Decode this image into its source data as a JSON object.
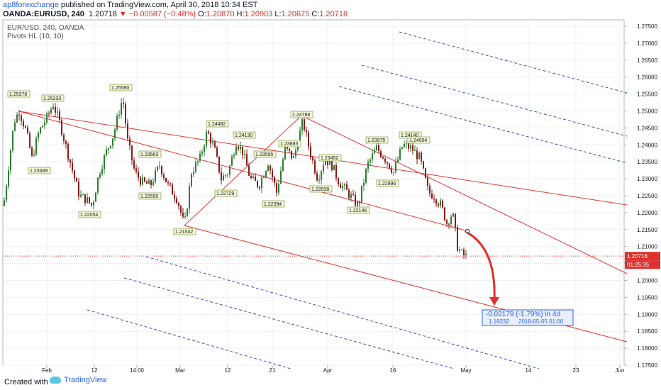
{
  "header": {
    "author": "ap8forexchange",
    "published": "published on TradingView.com, April 30, 2018 10:34 EST",
    "symbol": "OANDA:EURUSD, 240",
    "last": "1.20718",
    "change": "▼ −0.00587 (−0.48%)",
    "o_label": "O:",
    "o": "1.20870",
    "h_label": "H:",
    "h": "1.20903",
    "l_label": "L:",
    "l": "1.20675",
    "c_label": "C:",
    "c": "1.20718"
  },
  "legend": {
    "line1": "EUR/USD, 240, OANDA",
    "line2": "Pivots HL (10, 10)"
  },
  "chart_data": {
    "type": "candlestick",
    "y_ticks": [
      "1.27500",
      "1.27000",
      "1.26500",
      "1.26000",
      "1.25500",
      "1.25000",
      "1.24500",
      "1.24000",
      "1.23500",
      "1.23000",
      "1.22500",
      "1.22000",
      "1.21500",
      "1.21000",
      "1.20500",
      "1.20000",
      "1.19500",
      "1.19000",
      "1.18500",
      "1.18000",
      "1.17500"
    ],
    "ylim": [
      1.175,
      1.2775
    ],
    "x_ticks": [
      "Feb",
      "12",
      "14:00",
      "Mar",
      "12",
      "21",
      "Apr",
      "16",
      "May",
      "14",
      "23",
      "Jun"
    ],
    "price_labels": {
      "last": "1.20718",
      "countdown": "01:25:35"
    },
    "pivots": [
      {
        "label": "1.25378",
        "value": 1.25378
      },
      {
        "label": "1.25233",
        "value": 1.25233
      },
      {
        "label": "1.23349",
        "value": 1.23349
      },
      {
        "label": "1.22054",
        "value": 1.22054
      },
      {
        "label": "1.25580",
        "value": 1.2558
      },
      {
        "label": "1.23563",
        "value": 1.23563
      },
      {
        "label": "1.22595",
        "value": 1.22595
      },
      {
        "label": "1.21542",
        "value": 1.21542
      },
      {
        "label": "1.24482",
        "value": 1.24482
      },
      {
        "label": "1.22729",
        "value": 1.22729
      },
      {
        "label": "1.24130",
        "value": 1.2413
      },
      {
        "label": "1.23595",
        "value": 1.23595
      },
      {
        "label": "1.22394",
        "value": 1.22394
      },
      {
        "label": "1.23885",
        "value": 1.23885
      },
      {
        "label": "1.24788",
        "value": 1.24788
      },
      {
        "label": "1.23452",
        "value": 1.23452
      },
      {
        "label": "1.22838",
        "value": 1.22838
      },
      {
        "label": "1.22146",
        "value": 1.22146
      },
      {
        "label": "1.23975",
        "value": 1.23975
      },
      {
        "label": "1.22996",
        "value": 1.22996
      },
      {
        "label": "1.24140",
        "value": 1.2414
      },
      {
        "label": "1.24004",
        "value": 1.24004
      }
    ],
    "projection": {
      "text": "-0.02179 (-1.79%) in 4d",
      "target": "1.19232",
      "date": "2018-05-05 01:00"
    },
    "grid": true,
    "colors": {
      "up": "#2e7d32",
      "down": "#8b1a1a",
      "channel": "#e53935",
      "dashed": "#3f51b5",
      "background": "#ffffff"
    }
  },
  "footer": {
    "created": "Created with",
    "brand": "TradingView"
  }
}
